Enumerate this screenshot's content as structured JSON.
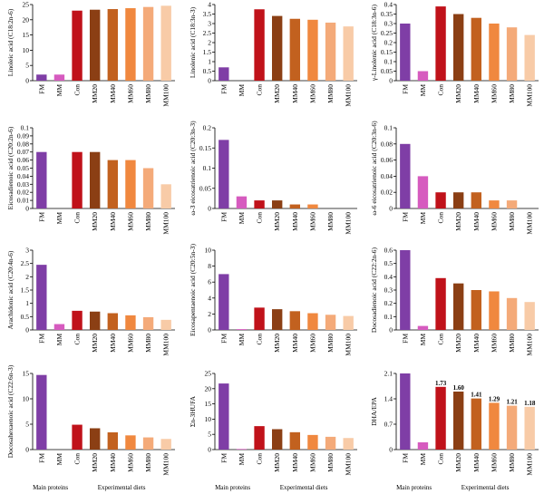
{
  "categories": [
    "FM",
    "MM",
    "Con",
    "MM20",
    "MM40",
    "MM60",
    "MM80",
    "MM100"
  ],
  "colors": [
    "#7f3ea6",
    "#d65bbf",
    "#c0121a",
    "#8b3f14",
    "#c2611f",
    "#f0883f",
    "#f4aa79",
    "#f8cba7"
  ],
  "group_labels": {
    "main": "Main proteins",
    "diets": "Experimental diets"
  },
  "chart_data": [
    {
      "type": "bar",
      "ylabel": "Linoleic acid (C18:2n-6)",
      "ylim": [
        0,
        25
      ],
      "yticks": [
        "0",
        "5",
        "10",
        "15",
        "20",
        "25"
      ],
      "tick_values": [
        0,
        5,
        10,
        15,
        20,
        25
      ],
      "values": [
        2.0,
        2.0,
        23.0,
        23.3,
        23.5,
        23.8,
        24.2,
        24.6
      ]
    },
    {
      "type": "bar",
      "ylabel": "Linolenic acid (C18:3n-3)",
      "ylim": [
        0,
        4
      ],
      "yticks": [
        "0",
        "0.5",
        "1",
        "1.5",
        "2",
        "2.5",
        "3",
        "3.5",
        "4"
      ],
      "tick_values": [
        0,
        0.5,
        1,
        1.5,
        2,
        2.5,
        3,
        3.5,
        4
      ],
      "values": [
        0.7,
        0.0,
        3.75,
        3.4,
        3.25,
        3.2,
        3.05,
        2.85
      ]
    },
    {
      "type": "bar",
      "ylabel": "γ-Linolenic acid (C18:3n-6)",
      "ylim": [
        0,
        0.4
      ],
      "yticks": [
        "0",
        "0.05",
        "0.1",
        "0.15",
        "0.2",
        "0.25",
        "0.3",
        "0.35",
        "0.4"
      ],
      "tick_values": [
        0,
        0.05,
        0.1,
        0.15,
        0.2,
        0.25,
        0.3,
        0.35,
        0.4
      ],
      "values": [
        0.3,
        0.05,
        0.39,
        0.35,
        0.33,
        0.3,
        0.28,
        0.24
      ]
    },
    {
      "type": "bar",
      "ylabel": "Eicosadienoic acid (C20:2n-6)",
      "ylim": [
        0,
        0.1
      ],
      "yticks": [
        "0",
        "0.01",
        "0.02",
        "0.03",
        "0.04",
        "0.05",
        "0.06",
        "0.07",
        "0.08",
        "0.09",
        "0.1"
      ],
      "tick_values": [
        0,
        0.01,
        0.02,
        0.03,
        0.04,
        0.05,
        0.06,
        0.07,
        0.08,
        0.09,
        0.1
      ],
      "values": [
        0.07,
        0.0,
        0.07,
        0.07,
        0.06,
        0.06,
        0.05,
        0.03
      ]
    },
    {
      "type": "bar",
      "ylabel": "ω-3 eicosatrienoic acid (C20:3n-3)",
      "ylim": [
        0,
        0.2
      ],
      "yticks": [
        "0",
        "0.05",
        "0.1",
        "0.15",
        "0.2"
      ],
      "tick_values": [
        0,
        0.05,
        0.1,
        0.15,
        0.2
      ],
      "values": [
        0.17,
        0.03,
        0.02,
        0.02,
        0.01,
        0.01,
        0.0,
        0.0
      ]
    },
    {
      "type": "bar",
      "ylabel": "ω-6 eicosatrienoic acid (C20:3n-6)",
      "ylim": [
        0,
        0.1
      ],
      "yticks": [
        "0",
        "0.02",
        "0.04",
        "0.06",
        "0.08",
        "0.1"
      ],
      "tick_values": [
        0,
        0.02,
        0.04,
        0.06,
        0.08,
        0.1
      ],
      "values": [
        0.08,
        0.04,
        0.02,
        0.02,
        0.02,
        0.01,
        0.01,
        0.0
      ]
    },
    {
      "type": "bar",
      "ylabel": "Arachidonic acid (C20:4n-6)",
      "ylim": [
        0,
        3
      ],
      "yticks": [
        "0",
        "0.5",
        "1",
        "1.5",
        "2",
        "2.5",
        "3"
      ],
      "tick_values": [
        0,
        0.5,
        1,
        1.5,
        2,
        2.5,
        3
      ],
      "values": [
        2.45,
        0.22,
        0.72,
        0.69,
        0.63,
        0.55,
        0.48,
        0.38
      ]
    },
    {
      "type": "bar",
      "ylabel": "Eicosapentaenoic acid (C20:5n-3)",
      "ylim": [
        0,
        10
      ],
      "yticks": [
        "0",
        "2",
        "4",
        "6",
        "8",
        "10"
      ],
      "tick_values": [
        0,
        2,
        4,
        6,
        8,
        10
      ],
      "values": [
        7.0,
        0.1,
        2.8,
        2.6,
        2.35,
        2.1,
        1.9,
        1.75
      ]
    },
    {
      "type": "bar",
      "ylabel": "Docosadienoic acid (C22:2n-6)",
      "ylim": [
        0,
        0.6
      ],
      "yticks": [
        "0",
        "0.1",
        "0.2",
        "0.3",
        "0.4",
        "0.5",
        "0.6"
      ],
      "tick_values": [
        0,
        0.1,
        0.2,
        0.3,
        0.4,
        0.5,
        0.6
      ],
      "values": [
        0.6,
        0.03,
        0.39,
        0.35,
        0.3,
        0.29,
        0.24,
        0.21
      ]
    },
    {
      "type": "bar",
      "ylabel": "Docosahexaenoic acid (C22:6n-3)",
      "ylim": [
        0,
        15
      ],
      "yticks": [
        "0",
        "5",
        "10",
        "15"
      ],
      "tick_values": [
        0,
        5,
        10,
        15
      ],
      "values": [
        14.7,
        0.0,
        4.9,
        4.2,
        3.4,
        2.8,
        2.4,
        2.1
      ]
    },
    {
      "type": "bar",
      "ylabel": "Σn-3HUFA",
      "ylim": [
        0,
        25
      ],
      "yticks": [
        "0",
        "5",
        "10",
        "15",
        "20",
        "25"
      ],
      "tick_values": [
        0,
        5,
        10,
        15,
        20,
        25
      ],
      "values": [
        21.7,
        0.2,
        7.7,
        6.7,
        5.7,
        4.8,
        4.2,
        3.8
      ]
    },
    {
      "type": "bar",
      "ylabel": "DHA/EPA",
      "ylim": [
        0,
        2.1
      ],
      "yticks": [
        "0",
        "0.7",
        "1.4",
        "2.1"
      ],
      "tick_values": [
        0,
        0.7,
        1.4,
        2.1
      ],
      "values": [
        2.1,
        0.2,
        1.73,
        1.6,
        1.41,
        1.29,
        1.21,
        1.18
      ],
      "data_labels": [
        "",
        "",
        "1.73",
        "1.60",
        "1.41",
        "1.29",
        "1.21",
        "1.18"
      ]
    }
  ]
}
